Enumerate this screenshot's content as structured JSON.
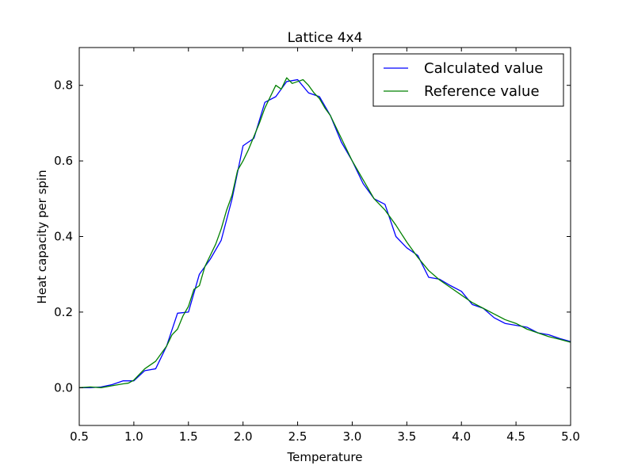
{
  "chart_data": {
    "type": "line",
    "title": "Lattice 4x4",
    "xlabel": "Temperature",
    "ylabel": "Heat capacity per spin",
    "xlim": [
      0.5,
      5.0
    ],
    "ylim": [
      -0.1,
      0.9
    ],
    "xticks": [
      0.5,
      1.0,
      1.5,
      2.0,
      2.5,
      3.0,
      3.5,
      4.0,
      4.5,
      5.0
    ],
    "xtick_labels": [
      "0.5",
      "1.0",
      "1.5",
      "2.0",
      "2.5",
      "3.0",
      "3.5",
      "4.0",
      "4.5",
      "5.0"
    ],
    "yticks": [
      0.0,
      0.2,
      0.4,
      0.6,
      0.8
    ],
    "ytick_labels": [
      "0.0",
      "0.2",
      "0.4",
      "0.6",
      "0.8"
    ],
    "grid": false,
    "legend_position": "top-right",
    "series": [
      {
        "name": "Calculated value",
        "color": "#0000ff",
        "x": [
          0.5,
          0.6,
          0.7,
          0.8,
          0.9,
          1.0,
          1.1,
          1.2,
          1.3,
          1.4,
          1.5,
          1.6,
          1.7,
          1.8,
          1.9,
          2.0,
          2.1,
          2.2,
          2.3,
          2.4,
          2.5,
          2.6,
          2.7,
          2.8,
          2.9,
          3.0,
          3.1,
          3.2,
          3.3,
          3.4,
          3.5,
          3.6,
          3.7,
          3.8,
          3.9,
          4.0,
          4.1,
          4.2,
          4.3,
          4.4,
          4.5,
          4.6,
          4.7,
          4.8,
          4.9,
          5.0
        ],
        "y": [
          0.0,
          0.0,
          0.002,
          0.008,
          0.018,
          0.018,
          0.045,
          0.05,
          0.11,
          0.197,
          0.2,
          0.3,
          0.34,
          0.39,
          0.5,
          0.64,
          0.66,
          0.755,
          0.77,
          0.81,
          0.815,
          0.78,
          0.77,
          0.72,
          0.65,
          0.6,
          0.54,
          0.5,
          0.485,
          0.4,
          0.37,
          0.35,
          0.292,
          0.287,
          0.27,
          0.255,
          0.22,
          0.21,
          0.185,
          0.17,
          0.165,
          0.16,
          0.145,
          0.14,
          0.13,
          0.122
        ]
      },
      {
        "name": "Reference value",
        "color": "#008000",
        "x": [
          0.5,
          0.6,
          0.7,
          0.8,
          0.9,
          0.95,
          1.0,
          1.05,
          1.1,
          1.15,
          1.2,
          1.25,
          1.3,
          1.35,
          1.4,
          1.45,
          1.5,
          1.55,
          1.6,
          1.65,
          1.7,
          1.75,
          1.8,
          1.85,
          1.9,
          1.95,
          2.0,
          2.05,
          2.1,
          2.15,
          2.2,
          2.25,
          2.3,
          2.35,
          2.4,
          2.45,
          2.5,
          2.55,
          2.6,
          2.65,
          2.7,
          2.75,
          2.8,
          2.9,
          3.0,
          3.1,
          3.2,
          3.3,
          3.4,
          3.5,
          3.6,
          3.7,
          3.8,
          3.9,
          4.0,
          4.1,
          4.2,
          4.3,
          4.4,
          4.5,
          4.6,
          4.7,
          4.8,
          4.9,
          5.0
        ],
        "y": [
          0.0,
          0.002,
          0.0,
          0.005,
          0.01,
          0.012,
          0.02,
          0.035,
          0.05,
          0.06,
          0.07,
          0.09,
          0.11,
          0.14,
          0.155,
          0.19,
          0.215,
          0.26,
          0.27,
          0.32,
          0.35,
          0.38,
          0.42,
          0.47,
          0.51,
          0.575,
          0.6,
          0.63,
          0.665,
          0.7,
          0.74,
          0.77,
          0.8,
          0.79,
          0.82,
          0.805,
          0.81,
          0.815,
          0.8,
          0.78,
          0.765,
          0.74,
          0.72,
          0.66,
          0.6,
          0.55,
          0.5,
          0.47,
          0.43,
          0.385,
          0.345,
          0.31,
          0.285,
          0.265,
          0.245,
          0.225,
          0.21,
          0.195,
          0.18,
          0.17,
          0.155,
          0.145,
          0.135,
          0.128,
          0.12
        ]
      }
    ]
  }
}
